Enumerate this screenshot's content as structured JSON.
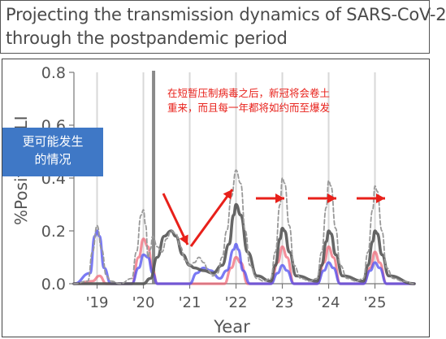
{
  "title": {
    "line1": "Projecting the transmission dynamics of SARS-CoV-2",
    "line2": "through the postpandemic period"
  },
  "annotations": {
    "red_line1": "在短暂压制病毒之后，新冠将会卷土",
    "red_line2": "重来，而且每一年都将如约而至爆发",
    "blue_line1": "更可能发生",
    "blue_line2": "的情况"
  },
  "colors": {
    "gray_dark": "#555555",
    "gray_dashed": "#999999",
    "blue": "#4d4df0",
    "red": "#f06070",
    "annotation_red": "#e8201a",
    "box_blue": "#3f78c6"
  },
  "chart_data": {
    "type": "line",
    "title": "",
    "xlabel": "Year",
    "ylabel": "%Positive ILI",
    "ylabel_visible": "%Positive",
    "ylabel_hidden_suffix": "LI",
    "xlim": [
      2018.5,
      2025.85
    ],
    "ylim": [
      0,
      0.8
    ],
    "yticks": [
      0.0,
      0.2,
      0.4,
      0.6,
      0.8
    ],
    "ytick_labels": [
      "0.0",
      "0.2",
      "0.4",
      "0.6",
      "0.8"
    ],
    "xticks": [
      2019,
      2020,
      2021,
      2022,
      2023,
      2024,
      2025
    ],
    "xtick_labels": [
      "'19",
      "'20",
      "'21",
      "'22",
      "'23",
      "'24",
      "'25"
    ],
    "grid": "vertical lines at each year tick",
    "event_line_x": 2020.22,
    "series": [
      {
        "name": "",
        "style": "dashed-gray",
        "x": [
          2018.5,
          2018.8,
          2018.9,
          2019.0,
          2019.1,
          2019.2,
          2019.3,
          2019.5,
          2019.75,
          2019.85,
          2019.95,
          2020.0,
          2020.05,
          2020.1,
          2020.15,
          2020.2,
          2020.3,
          2020.4,
          2020.5,
          2020.6,
          2020.7,
          2020.8,
          2020.9,
          2021.0,
          2021.1,
          2021.2,
          2021.3,
          2021.4,
          2021.5,
          2021.6,
          2021.7,
          2021.8,
          2021.9,
          2022.0,
          2022.1,
          2022.2,
          2022.3,
          2022.45,
          2022.6,
          2022.75,
          2022.85,
          2022.95,
          2023.0,
          2023.05,
          2023.15,
          2023.25,
          2023.4,
          2023.6,
          2023.75,
          2023.85,
          2023.95,
          2024.0,
          2024.05,
          2024.15,
          2024.25,
          2024.4,
          2024.6,
          2024.75,
          2024.85,
          2024.95,
          2025.0,
          2025.05,
          2025.15,
          2025.25,
          2025.4,
          2025.6,
          2025.85
        ],
        "y": [
          0.0,
          0.01,
          0.12,
          0.22,
          0.13,
          0.03,
          0.01,
          0.0,
          0.02,
          0.12,
          0.26,
          0.28,
          0.22,
          0.1,
          0.13,
          0.18,
          0.14,
          0.12,
          0.17,
          0.2,
          0.19,
          0.14,
          0.09,
          0.07,
          0.08,
          0.1,
          0.08,
          0.05,
          0.03,
          0.04,
          0.1,
          0.2,
          0.33,
          0.43,
          0.38,
          0.2,
          0.07,
          0.02,
          0.01,
          0.02,
          0.12,
          0.3,
          0.4,
          0.38,
          0.22,
          0.07,
          0.02,
          0.01,
          0.02,
          0.12,
          0.29,
          0.39,
          0.37,
          0.21,
          0.07,
          0.02,
          0.01,
          0.02,
          0.12,
          0.28,
          0.37,
          0.35,
          0.2,
          0.06,
          0.02,
          0.01,
          0.0
        ]
      },
      {
        "name": "",
        "style": "solid-dark-gray",
        "x": [
          2018.5,
          2019.5,
          2020.0,
          2020.15,
          2020.3,
          2020.45,
          2020.6,
          2020.7,
          2020.85,
          2021.0,
          2021.1,
          2021.3,
          2021.5,
          2021.7,
          2021.85,
          2021.95,
          2022.0,
          2022.1,
          2022.25,
          2022.45,
          2022.75,
          2022.85,
          2022.95,
          2023.0,
          2023.05,
          2023.15,
          2023.3,
          2023.75,
          2023.85,
          2023.95,
          2024.0,
          2024.05,
          2024.15,
          2024.3,
          2024.75,
          2024.85,
          2024.95,
          2025.0,
          2025.05,
          2025.15,
          2025.3,
          2025.85
        ],
        "y": [
          0.0,
          0.0,
          0.0,
          0.02,
          0.1,
          0.18,
          0.2,
          0.18,
          0.11,
          0.07,
          0.06,
          0.05,
          0.04,
          0.07,
          0.15,
          0.26,
          0.3,
          0.26,
          0.12,
          0.03,
          0.01,
          0.07,
          0.17,
          0.21,
          0.2,
          0.12,
          0.03,
          0.01,
          0.07,
          0.16,
          0.2,
          0.19,
          0.11,
          0.03,
          0.01,
          0.07,
          0.16,
          0.2,
          0.19,
          0.11,
          0.03,
          0.0
        ]
      },
      {
        "name": "",
        "style": "solid-blue",
        "x": [
          2018.5,
          2018.85,
          2018.95,
          2019.0,
          2019.05,
          2019.15,
          2019.3,
          2019.75,
          2019.9,
          2020.0,
          2020.1,
          2020.2,
          2020.3,
          2021.0,
          2021.15,
          2021.3,
          2021.45,
          2021.65,
          2021.8,
          2021.95,
          2022.0,
          2022.05,
          2022.15,
          2022.3,
          2022.75,
          2022.9,
          2023.0,
          2023.1,
          2023.25,
          2023.75,
          2023.9,
          2024.0,
          2024.1,
          2024.25,
          2024.75,
          2024.9,
          2025.0,
          2025.1,
          2025.25,
          2025.85
        ],
        "y": [
          0.0,
          0.04,
          0.18,
          0.2,
          0.18,
          0.06,
          0.0,
          0.0,
          0.06,
          0.11,
          0.1,
          0.04,
          0.0,
          0.0,
          0.04,
          0.06,
          0.05,
          0.02,
          0.05,
          0.13,
          0.15,
          0.13,
          0.05,
          0.0,
          0.0,
          0.04,
          0.07,
          0.05,
          0.0,
          0.0,
          0.05,
          0.08,
          0.06,
          0.0,
          0.0,
          0.05,
          0.08,
          0.06,
          0.0,
          0.0
        ]
      },
      {
        "name": "",
        "style": "solid-red",
        "x": [
          2018.5,
          2018.9,
          2019.05,
          2019.2,
          2019.75,
          2019.9,
          2020.0,
          2020.1,
          2020.2,
          2020.3,
          2021.75,
          2021.9,
          2022.0,
          2022.1,
          2022.25,
          2022.75,
          2022.9,
          2023.0,
          2023.1,
          2023.25,
          2023.75,
          2023.9,
          2024.0,
          2024.1,
          2024.25,
          2024.75,
          2024.9,
          2025.0,
          2025.1,
          2025.25,
          2025.85
        ],
        "y": [
          0.0,
          0.01,
          0.03,
          0.0,
          0.0,
          0.1,
          0.17,
          0.14,
          0.05,
          0.0,
          0.0,
          0.06,
          0.1,
          0.08,
          0.0,
          0.0,
          0.08,
          0.14,
          0.1,
          0.0,
          0.0,
          0.08,
          0.14,
          0.1,
          0.0,
          0.0,
          0.06,
          0.12,
          0.08,
          0.0,
          0.0
        ]
      }
    ]
  }
}
